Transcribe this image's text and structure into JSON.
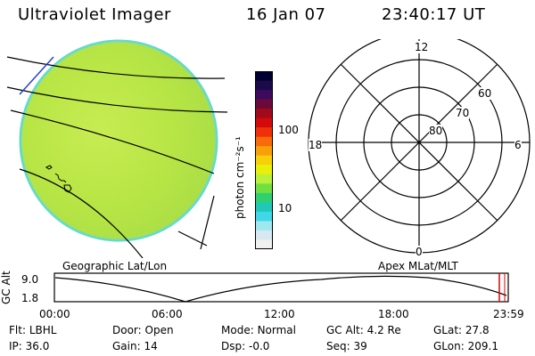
{
  "header": {
    "instrument": "Ultraviolet Imager",
    "date": "16 Jan 07",
    "time": "23:40:17 UT"
  },
  "colorbar": {
    "unit_label": "photon cm⁻²s⁻¹",
    "ticks": [
      "100",
      "10"
    ],
    "colors": [
      "#000033",
      "#1a0a4a",
      "#3d0a5e",
      "#6b0a3a",
      "#a00a1a",
      "#d40a0a",
      "#f0300a",
      "#f86a0a",
      "#f8a00a",
      "#f8d00a",
      "#e8f00a",
      "#b8f03a",
      "#70e040",
      "#30d070",
      "#20c8b8",
      "#40d8e8",
      "#a0e8f0",
      "#d8e8f0",
      "#f0f0f0"
    ]
  },
  "panels": {
    "left_caption": "Geographic Lat/Lon",
    "right_caption": "Apex  MLat/MLT",
    "polar_labels": {
      "top": "12",
      "left": "18",
      "right": "6",
      "bottom": "0"
    },
    "polar_rings": [
      "60",
      "70",
      "80"
    ]
  },
  "timeline": {
    "axis_title": "GC Alt",
    "y_ticks": [
      "9.0",
      "1.8"
    ],
    "x_ticks": [
      "00:00",
      "06:00",
      "12:00",
      "18:00",
      "23:59"
    ],
    "current_marker": "23:40"
  },
  "info": {
    "row1": [
      {
        "label": "Flt:",
        "value": "LBHL"
      },
      {
        "label": "Door:",
        "value": "Open"
      },
      {
        "label": "Mode:",
        "value": "Normal"
      },
      {
        "label": "GC Alt:",
        "value": "4.2 Re"
      },
      {
        "label": "GLat:",
        "value": "27.8"
      }
    ],
    "row2": [
      {
        "label": "IP:",
        "value": "36.0"
      },
      {
        "label": "Gain:",
        "value": "14"
      },
      {
        "label": "Dsp:",
        "value": "-0.0"
      },
      {
        "label": "Seq:",
        "value": "39"
      },
      {
        "label": "GLon:",
        "value": "209.1"
      }
    ]
  },
  "colors": {
    "disk_fill": "#b8e63c",
    "disk_edge": "#5fd9c9",
    "marker": "#e00000"
  }
}
